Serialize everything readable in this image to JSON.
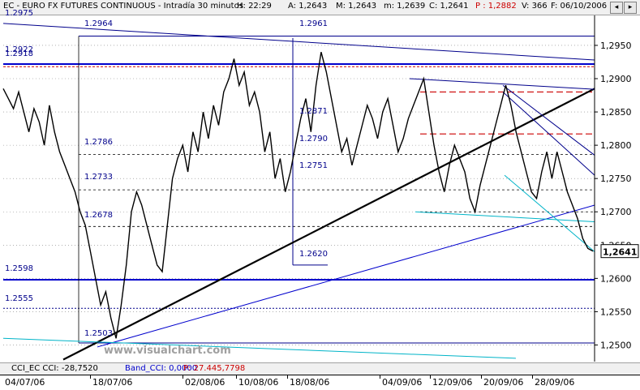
{
  "header": {
    "symbol": "EC - EURO FX FUTURES CONTINUOUS - Intradía 30 minutos",
    "hour": "H: 22:29",
    "open": "A: 1,2643",
    "max": "M: 1,2643",
    "min": "m: 1,2639",
    "close": "C: 1,2641",
    "p": "P : 1,2882",
    "volume": "V: 366",
    "date": "F: 06/10/2006"
  },
  "footer": {
    "cci": "CCI_EC  CCI: -28,7520",
    "band": "Band_CCI: 0,0000",
    "p": "P: 27.445,7798"
  },
  "watermark": "www.visualchart.com",
  "window_buttons": [
    "◂",
    "▸"
  ],
  "chart_data": {
    "type": "line",
    "title": "EC - EURO FX FUTURES CONTINUOUS - Intradía 30 minutos",
    "xlabel": "",
    "ylabel": "",
    "ylim": [
      1.2475,
      1.2995
    ],
    "y_ticks": [
      "1,2950",
      "1,2900",
      "1,2850",
      "1,2800",
      "1,2750",
      "1,2700",
      "1,2650",
      "1,2600",
      "1,2550",
      "1,2500"
    ],
    "y_tick_values": [
      1.295,
      1.29,
      1.285,
      1.28,
      1.275,
      1.27,
      1.265,
      1.26,
      1.255,
      1.25
    ],
    "x_tick_labels": [
      "04/07/06",
      "18/07/06",
      "02/08/06",
      "10/08/06",
      "18/08/06",
      "04/09/06",
      "12/09/06",
      "20/09/06",
      "28/09/06"
    ],
    "last_price": "1,2641",
    "last_value": 1.2641,
    "series": [
      {
        "color": "#000000",
        "values": [
          1.2885,
          1.287,
          1.2855,
          1.288,
          1.285,
          1.282,
          1.2855,
          1.2835,
          1.28,
          1.286,
          1.282,
          1.279,
          1.277,
          1.275,
          1.273,
          1.27,
          1.268,
          1.264,
          1.26,
          1.256,
          1.258,
          1.254,
          1.251,
          1.256,
          1.262,
          1.27,
          1.273,
          1.271,
          1.268,
          1.265,
          1.262,
          1.261,
          1.268,
          1.275,
          1.278,
          1.28,
          1.276,
          1.282,
          1.279,
          1.285,
          1.281,
          1.286,
          1.283,
          1.288,
          1.29,
          1.293,
          1.289,
          1.291,
          1.286,
          1.288,
          1.285,
          1.279,
          1.282,
          1.275,
          1.278,
          1.273,
          1.276,
          1.28,
          1.284,
          1.287,
          1.282,
          1.289,
          1.294,
          1.291,
          1.287,
          1.283,
          1.279,
          1.281,
          1.277,
          1.28,
          1.283,
          1.286,
          1.284,
          1.281,
          1.285,
          1.287,
          1.283,
          1.279,
          1.281,
          1.284,
          1.286,
          1.288,
          1.29,
          1.285,
          1.28,
          1.276,
          1.273,
          1.277,
          1.28,
          1.278,
          1.276,
          1.272,
          1.27,
          1.274,
          1.277,
          1.28,
          1.283,
          1.286,
          1.289,
          1.286,
          1.282,
          1.279,
          1.276,
          1.273,
          1.272,
          1.276,
          1.279,
          1.275,
          1.279,
          1.276,
          1.273,
          1.271,
          1.269,
          1.266,
          1.2645,
          1.2641
        ]
      }
    ],
    "levels": [
      {
        "label": "1.2975",
        "value": 1.2975,
        "color": "#00008b"
      },
      {
        "label": "1.2964",
        "value": 1.2964,
        "color": "#00008b"
      },
      {
        "label": "1.2961",
        "value": 1.2961,
        "color": "#00008b"
      },
      {
        "label": "1.2922",
        "value": 1.2922,
        "color": "#00008b"
      },
      {
        "label": "1.2918",
        "value": 1.2918,
        "color": "#00008b"
      },
      {
        "label": "1.2871",
        "value": 1.2871,
        "color": "#00008b"
      },
      {
        "label": "1.2786",
        "value": 1.2786,
        "color": "#00008b"
      },
      {
        "label": "1.2790",
        "value": 1.279,
        "color": "#00008b"
      },
      {
        "label": "1.2751",
        "value": 1.2751,
        "color": "#00008b"
      },
      {
        "label": "1.2733",
        "value": 1.2733,
        "color": "#00008b"
      },
      {
        "label": "1.2678",
        "value": 1.2678,
        "color": "#00008b"
      },
      {
        "label": "1.2620",
        "value": 1.262,
        "color": "#00008b"
      },
      {
        "label": "1.2598",
        "value": 1.2598,
        "color": "#00008b"
      },
      {
        "label": "1.2555",
        "value": 1.2555,
        "color": "#00008b"
      },
      {
        "label": "1.2503",
        "value": 1.2503,
        "color": "#00008b"
      }
    ],
    "colors": {
      "price": "#000000",
      "levels": "#00008b",
      "support_major": "#0000cd",
      "dashed_levels": "#cc0000",
      "trend": "#000000",
      "cyan_lines": "#00b4c8",
      "last_price_box": "#ffffff"
    },
    "grid": true,
    "legend": "none"
  }
}
